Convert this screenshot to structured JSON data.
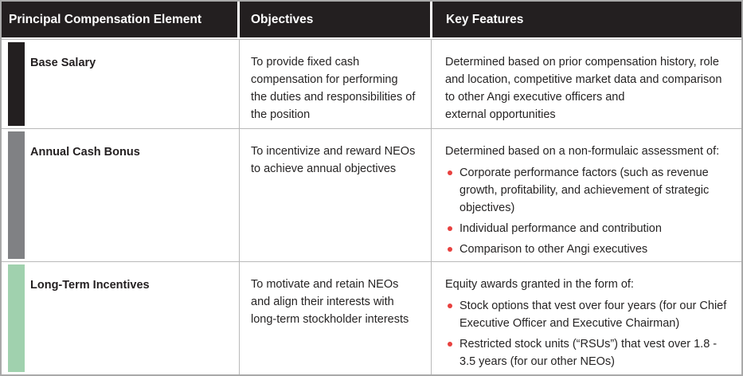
{
  "colors": {
    "header_bg": "#231f20",
    "bullet": "#e8413f",
    "bar_black": "#231f20",
    "bar_gray": "#808184",
    "bar_green": "#a0d1ae"
  },
  "table": {
    "columns": [
      {
        "label": "Principal Compensation Element"
      },
      {
        "label": "Objectives"
      },
      {
        "label": "Key Features"
      }
    ],
    "rows": [
      {
        "bar_color": "#231f20",
        "element": "Base Salary",
        "objective": "To provide fixed cash compensation for performing the duties and responsibilities of the position",
        "features_intro": "Determined based on prior compensation history, role and location, competitive market data and comparison to other Angi executive officers and\nexternal opportunities",
        "bullets": []
      },
      {
        "bar_color": "#808184",
        "element": "Annual Cash Bonus",
        "objective": "To incentivize and reward NEOs to achieve annual objectives",
        "features_intro": "Determined based on a non-formulaic assessment of:",
        "bullets": [
          "Corporate performance factors (such as revenue growth, profitability, and achievement of strategic objectives)",
          "Individual performance and contribution",
          "Comparison to other Angi executives"
        ]
      },
      {
        "bar_color": "#a0d1ae",
        "element": "Long-Term Incentives",
        "objective": "To motivate and retain NEOs and align their interests with long-term stockholder interests",
        "features_intro": "Equity awards granted in the form of:",
        "bullets": [
          "Stock options that vest over four years (for our Chief Executive Officer and Executive Chairman)",
          "Restricted stock units (“RSUs”) that vest over 1.8 - 3.5 years (for our other NEOs)"
        ]
      }
    ]
  }
}
